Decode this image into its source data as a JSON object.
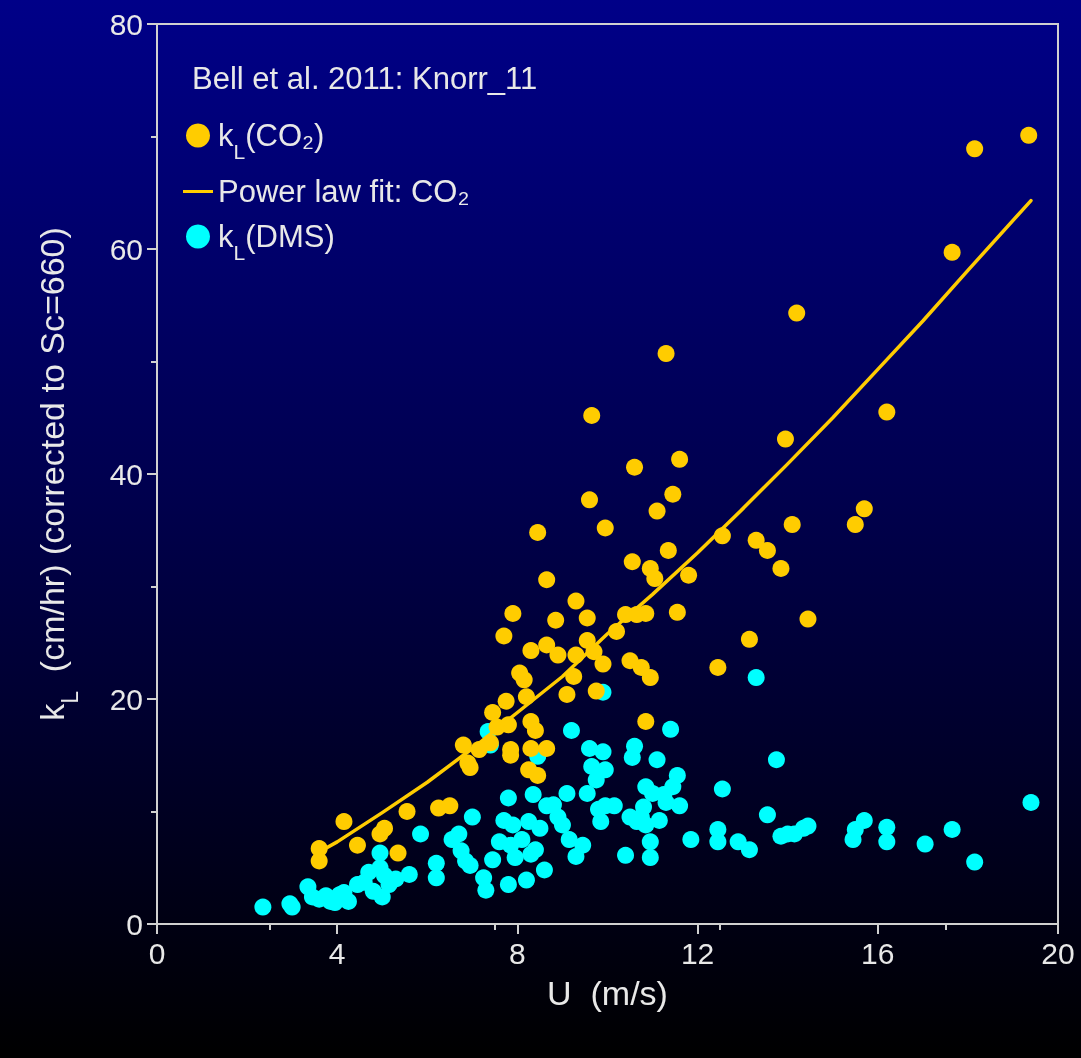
{
  "chart_data": {
    "type": "scatter",
    "xlabel": "U  (m/s)",
    "ylabel": "k$_{L}$  (cm/hr) (corrected to Sc=660)",
    "legend_title": "Bell et al. 2011: Knorr_11",
    "legend": "top left",
    "marker": "circle",
    "grid": false,
    "xlim": [
      0,
      20
    ],
    "xticks": [
      0,
      4,
      8,
      12,
      16,
      20
    ],
    "ylim": [
      0,
      80
    ],
    "yticks": [
      0,
      20,
      40,
      60,
      80
    ],
    "series": [
      {
        "name": "k$_{L}$(CO₂)",
        "color": "#ffcc00",
        "x": [
          3.6,
          3.6,
          4.15,
          4.45,
          4.95,
          5.05,
          5.35,
          5.55,
          6.25,
          6.5,
          6.8,
          6.9,
          6.95,
          7.15,
          7.4,
          7.45,
          7.55,
          7.7,
          7.75,
          7.8,
          7.85,
          7.9,
          7.85,
          8.05,
          8.15,
          8.2,
          8.3,
          8.3,
          8.25,
          8.3,
          8.4,
          8.45,
          8.45,
          8.65,
          8.65,
          8.65,
          8.85,
          8.9,
          9.1,
          9.25,
          9.3,
          9.3,
          9.55,
          9.55,
          9.6,
          9.65,
          9.7,
          9.75,
          9.9,
          9.95,
          10.2,
          10.4,
          10.5,
          10.55,
          10.6,
          10.65,
          10.75,
          10.85,
          10.85,
          10.95,
          10.95,
          11.05,
          11.1,
          11.3,
          11.35,
          11.45,
          11.6,
          11.55,
          11.8,
          12.45,
          12.55,
          13.15,
          13.3,
          13.55,
          13.85,
          13.95,
          14.1,
          14.2,
          14.45,
          15.5,
          15.7,
          16.2,
          17.65,
          18.15,
          19.35
        ],
        "values": [
          6.7,
          5.6,
          9.1,
          7.0,
          8.0,
          8.5,
          6.3,
          10.0,
          10.3,
          10.5,
          15.9,
          14.3,
          13.9,
          15.5,
          16.1,
          18.8,
          17.5,
          25.6,
          19.8,
          17.7,
          15.5,
          27.6,
          15.0,
          22.3,
          21.7,
          20.2,
          24.3,
          15.6,
          13.7,
          18.0,
          17.2,
          13.2,
          34.8,
          30.6,
          15.6,
          24.8,
          27.0,
          23.9,
          20.4,
          22.0,
          28.7,
          23.9,
          27.2,
          25.2,
          37.7,
          45.2,
          24.2,
          20.7,
          23.1,
          35.2,
          26.0,
          27.5,
          23.4,
          32.2,
          40.6,
          27.5,
          22.8,
          27.6,
          18.0,
          21.9,
          31.6,
          30.7,
          36.7,
          50.7,
          33.2,
          38.2,
          41.3,
          27.7,
          31.0,
          22.8,
          34.5,
          25.3,
          34.1,
          33.2,
          31.6,
          43.1,
          35.5,
          54.3,
          27.1,
          35.5,
          36.9,
          45.5,
          59.7,
          68.9,
          70.1
        ]
      },
      {
        "name": "Power law fit: CO₂",
        "type": "line",
        "color": "#ffcc00",
        "marker": "none",
        "line_style": "solid",
        "x": [
          3.6,
          4,
          5,
          6,
          7,
          8,
          9,
          10,
          11,
          12,
          13,
          14,
          15,
          16,
          17,
          18,
          19.4
        ],
        "values": [
          6.4,
          7.3,
          9.9,
          12.6,
          15.6,
          18.8,
          22.0,
          25.8,
          29.3,
          33.0,
          36.9,
          40.9,
          45.0,
          49.3,
          53.6,
          58.1,
          64.3
        ]
      },
      {
        "name": "k$_{L}$(DMS)",
        "color": "#00ffff",
        "x": [
          2.35,
          2.95,
          3.0,
          3.35,
          3.45,
          3.6,
          3.75,
          3.85,
          3.95,
          4.05,
          4.15,
          4.25,
          4.45,
          4.6,
          4.7,
          4.8,
          4.95,
          4.95,
          5.0,
          5.05,
          5.15,
          5.3,
          5.6,
          5.85,
          6.2,
          6.2,
          6.55,
          6.7,
          6.75,
          6.85,
          6.95,
          7.0,
          7.25,
          7.3,
          7.35,
          7.4,
          7.45,
          7.6,
          7.7,
          7.8,
          7.8,
          7.85,
          7.9,
          7.95,
          8.1,
          8.2,
          8.25,
          8.3,
          8.35,
          8.4,
          8.45,
          8.5,
          8.6,
          8.65,
          8.8,
          8.9,
          9.0,
          9.1,
          9.15,
          9.2,
          9.3,
          9.45,
          9.55,
          9.6,
          9.65,
          9.75,
          9.8,
          9.85,
          9.9,
          9.9,
          9.95,
          9.95,
          10.15,
          10.4,
          10.5,
          10.55,
          10.6,
          10.65,
          10.75,
          10.8,
          10.85,
          10.85,
          10.95,
          10.95,
          11.0,
          11.1,
          11.15,
          11.25,
          11.3,
          11.4,
          11.45,
          11.55,
          11.6,
          11.85,
          12.45,
          12.45,
          12.55,
          12.9,
          13.15,
          13.3,
          13.55,
          13.75,
          13.85,
          14.0,
          14.15,
          14.35,
          14.45,
          15.45,
          15.5,
          15.7,
          16.2,
          16.2,
          17.05,
          17.65,
          18.15,
          19.4
        ],
        "values": [
          1.5,
          1.8,
          1.5,
          3.3,
          2.4,
          2.2,
          2.5,
          2.0,
          1.9,
          2.6,
          2.8,
          2.0,
          3.5,
          3.7,
          4.6,
          2.9,
          5.0,
          6.3,
          2.4,
          4.3,
          3.5,
          4.0,
          4.4,
          8.0,
          5.4,
          4.1,
          7.5,
          8.0,
          6.5,
          5.6,
          5.2,
          9.5,
          4.1,
          3.0,
          17.1,
          15.9,
          5.7,
          7.3,
          9.2,
          11.2,
          3.5,
          7.0,
          8.8,
          5.9,
          7.5,
          3.9,
          9.1,
          6.2,
          11.5,
          6.6,
          14.9,
          8.5,
          4.8,
          10.5,
          10.6,
          9.5,
          8.8,
          11.6,
          7.5,
          17.2,
          6.0,
          7.0,
          11.6,
          15.6,
          14.0,
          12.8,
          10.2,
          9.1,
          20.6,
          15.3,
          13.7,
          10.5,
          10.5,
          6.1,
          9.5,
          14.8,
          15.8,
          9.1,
          9.5,
          10.4,
          12.2,
          8.8,
          5.9,
          7.3,
          11.6,
          14.6,
          9.2,
          11.5,
          10.8,
          17.3,
          12.2,
          13.2,
          10.5,
          7.5,
          8.4,
          7.3,
          12.0,
          7.3,
          6.6,
          21.9,
          9.7,
          14.6,
          7.8,
          8.0,
          8.0,
          8.5,
          8.7,
          7.5,
          8.4,
          9.2,
          8.6,
          7.3,
          7.1,
          8.4,
          5.5,
          10.8
        ]
      }
    ]
  }
}
